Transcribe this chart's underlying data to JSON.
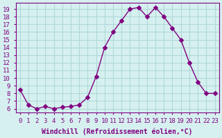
{
  "x": [
    0,
    1,
    2,
    3,
    4,
    5,
    6,
    7,
    8,
    9,
    10,
    11,
    12,
    13,
    14,
    15,
    16,
    17,
    18,
    19,
    20,
    21,
    22,
    23
  ],
  "y": [
    8.5,
    6.5,
    6.0,
    6.3,
    6.0,
    6.2,
    6.3,
    6.5,
    7.5,
    10.2,
    14.0,
    16.0,
    17.5,
    19.0,
    19.2,
    18.0,
    19.2,
    18.0,
    16.5,
    15.0,
    12.0,
    9.5,
    8.0,
    8.0
  ],
  "line_color": "#800080",
  "marker": "D",
  "marker_size": 3,
  "bg_color": "#d6f0f0",
  "grid_color": "#b0d8d8",
  "xlabel": "Windchill (Refroidissement éolien,°C)",
  "ylabel_ticks": [
    6,
    7,
    8,
    9,
    10,
    11,
    12,
    13,
    14,
    15,
    16,
    17,
    18,
    19
  ],
  "xlim": [
    -0.5,
    23.5
  ],
  "ylim": [
    5.5,
    19.8
  ],
  "xticks": [
    0,
    1,
    2,
    3,
    4,
    5,
    6,
    7,
    8,
    9,
    10,
    11,
    12,
    13,
    14,
    15,
    16,
    17,
    18,
    19,
    20,
    21,
    22,
    23
  ],
  "title_color": "#800080",
  "tick_color": "#800080",
  "label_fontsize": 7,
  "tick_fontsize": 6.5
}
